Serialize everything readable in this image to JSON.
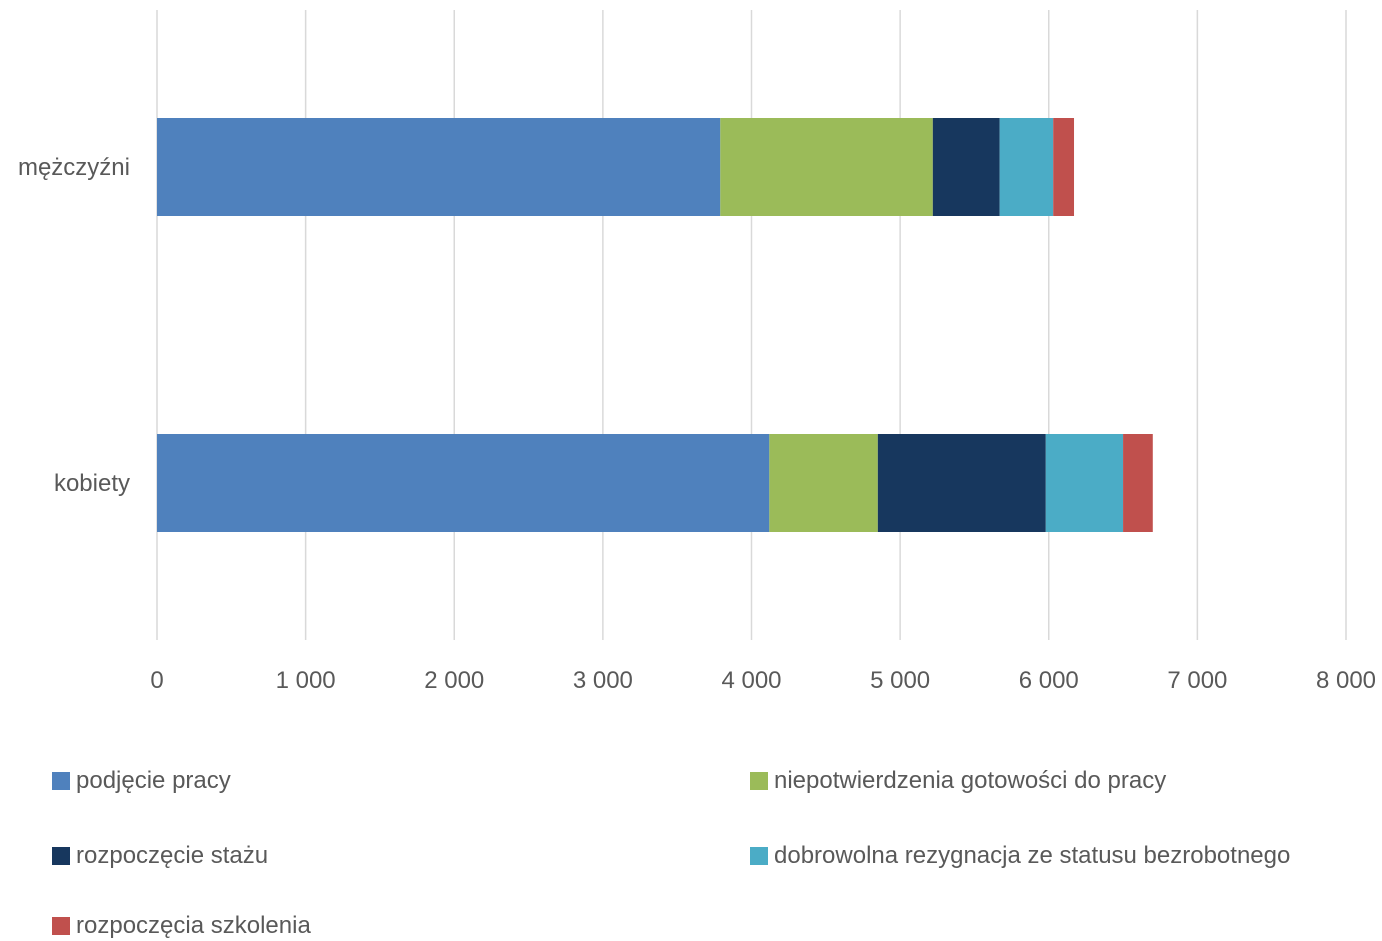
{
  "chart_data": {
    "type": "bar",
    "orientation": "horizontal",
    "stacked": true,
    "categories": [
      "mężczyźni",
      "kobiety"
    ],
    "series": [
      {
        "name": "podjęcie pracy",
        "values": [
          3790,
          4120
        ],
        "color": "#4F81BD"
      },
      {
        "name": "niepotwierdzenia gotowości do pracy",
        "values": [
          1430,
          730
        ],
        "color": "#9BBB59"
      },
      {
        "name": "rozpoczęcie stażu",
        "values": [
          450,
          1130
        ],
        "color": "#17375E"
      },
      {
        "name": "dobrowolna rezygnacja ze statusu bezrobotnego",
        "values": [
          360,
          520
        ],
        "color": "#4BACC6"
      },
      {
        "name": "rozpoczęcia szkolenia",
        "values": [
          140,
          200
        ],
        "color": "#C0504D"
      }
    ],
    "xlim": [
      0,
      8000
    ],
    "xticks": [
      0,
      1000,
      2000,
      3000,
      4000,
      5000,
      6000,
      7000,
      8000
    ],
    "xtick_labels": [
      "0",
      "1 000",
      "2 000",
      "3 000",
      "4 000",
      "5 000",
      "6 000",
      "7 000",
      "8 000"
    ],
    "grid": true,
    "legend_position": "bottom",
    "gridline_color": "#D9D9D9"
  }
}
